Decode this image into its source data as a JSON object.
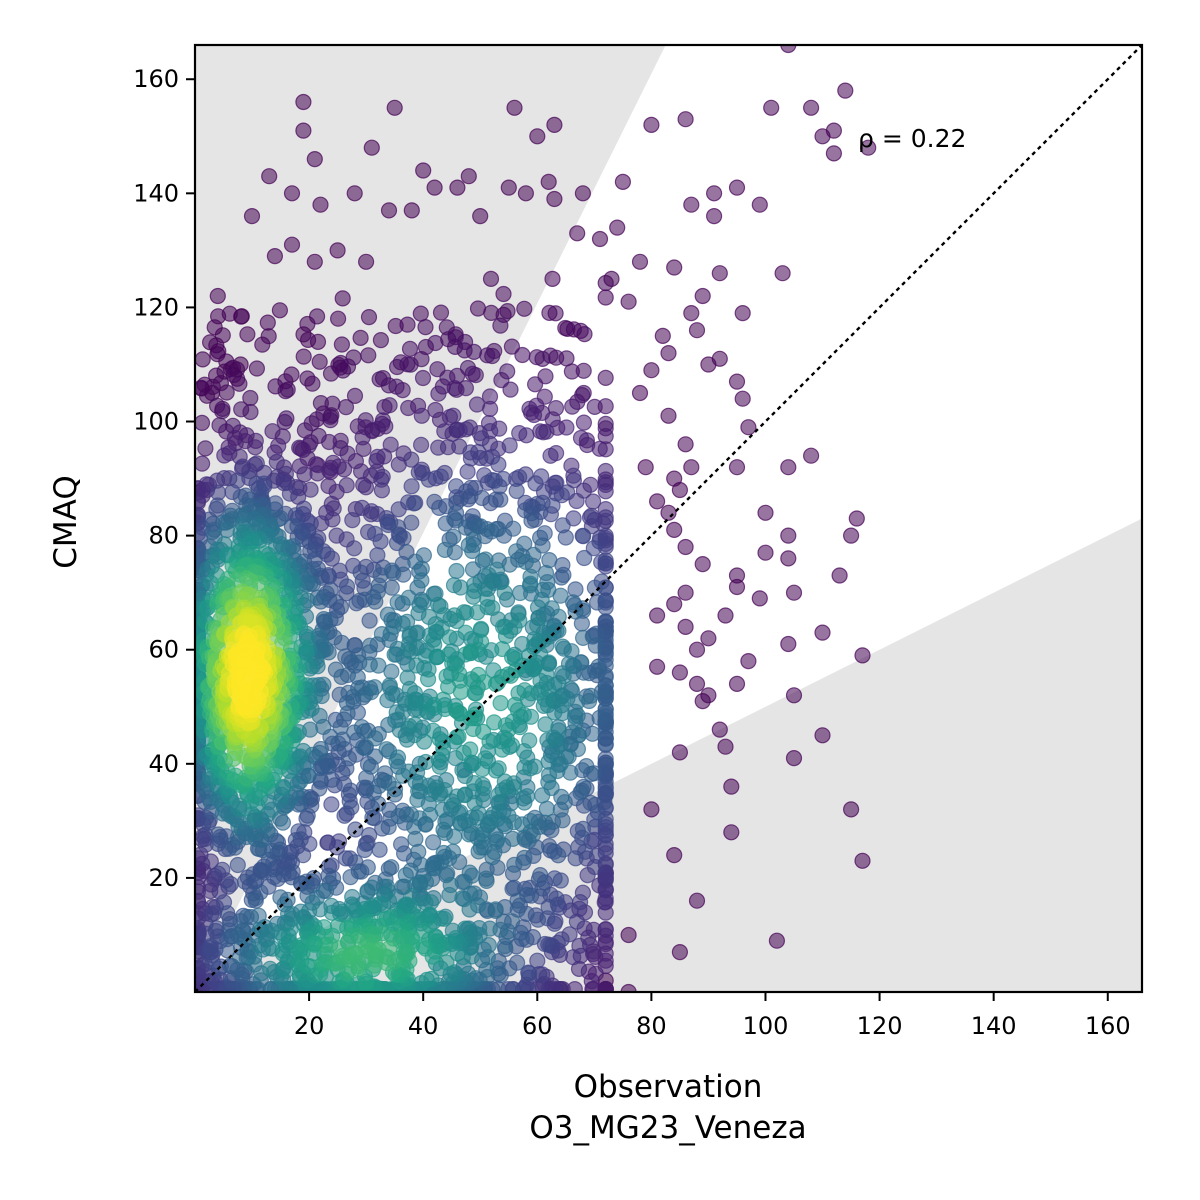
{
  "chart_data": {
    "type": "scatter",
    "xlabel": "Observation",
    "xlabel_sub": "O3_MG23_Veneza",
    "ylabel": "CMAQ",
    "annotation": "ρ = 0.22",
    "xlim": [
      0,
      166
    ],
    "ylim": [
      0,
      166
    ],
    "x_ticks": [
      20,
      40,
      60,
      80,
      100,
      120,
      140,
      160
    ],
    "y_ticks": [
      20,
      40,
      60,
      80,
      100,
      120,
      140,
      160
    ],
    "grid": false,
    "reference_line": {
      "type": "1:1",
      "style": "dotted",
      "color": "#000000"
    },
    "shaded_regions": [
      {
        "name": "upper-factor-region",
        "polygon": [
          [
            0,
            0
          ],
          [
            0,
            166
          ],
          [
            82.5,
            166
          ]
        ],
        "color": "#e5e5e5"
      },
      {
        "name": "lower-factor-region",
        "polygon": [
          [
            0,
            0
          ],
          [
            166,
            83
          ],
          [
            166,
            0
          ]
        ],
        "color": "#e5e5e5"
      }
    ],
    "colormap": "viridis",
    "color_meaning": "point density",
    "point_opacity": 0.55,
    "density_clusters": [
      {
        "center": [
          9,
          56
        ],
        "spread": [
          5,
          13
        ],
        "density": 1.0
      },
      {
        "center": [
          50,
          52
        ],
        "spread": [
          14,
          20
        ],
        "density": 0.55
      },
      {
        "center": [
          28,
          6
        ],
        "spread": [
          12,
          6
        ],
        "density": 0.6
      }
    ],
    "outlier_points": [
      [
        112,
        147
      ],
      [
        110,
        150
      ],
      [
        114,
        158
      ],
      [
        101,
        155
      ],
      [
        108,
        155
      ],
      [
        104,
        166
      ],
      [
        118,
        148
      ],
      [
        112,
        151
      ],
      [
        86,
        153
      ],
      [
        80,
        152
      ],
      [
        103,
        126
      ],
      [
        99,
        138
      ],
      [
        95,
        141
      ],
      [
        91,
        136
      ],
      [
        87,
        138
      ],
      [
        96,
        119
      ],
      [
        89,
        122
      ],
      [
        95,
        107
      ],
      [
        96,
        104
      ],
      [
        97,
        99
      ],
      [
        95,
        92
      ],
      [
        104,
        92
      ],
      [
        108,
        94
      ],
      [
        100,
        84
      ],
      [
        104,
        80
      ],
      [
        100,
        77
      ],
      [
        104,
        76
      ],
      [
        115,
        80
      ],
      [
        116,
        83
      ],
      [
        113,
        73
      ],
      [
        110,
        63
      ],
      [
        117,
        59
      ],
      [
        95,
        73
      ],
      [
        95,
        71
      ],
      [
        99,
        69
      ],
      [
        105,
        70
      ],
      [
        104,
        61
      ],
      [
        97,
        58
      ],
      [
        93,
        66
      ],
      [
        95,
        54
      ],
      [
        105,
        52
      ],
      [
        90,
        52
      ],
      [
        89,
        51
      ],
      [
        88,
        54
      ],
      [
        92,
        46
      ],
      [
        93,
        43
      ],
      [
        85,
        42
      ],
      [
        105,
        41
      ],
      [
        110,
        45
      ],
      [
        115,
        32
      ],
      [
        117,
        23
      ],
      [
        94,
        36
      ],
      [
        94,
        28
      ],
      [
        84,
        24
      ],
      [
        88,
        16
      ],
      [
        80,
        32
      ],
      [
        102,
        9
      ],
      [
        85,
        7
      ],
      [
        76,
        10
      ],
      [
        76,
        0
      ],
      [
        72,
        2
      ],
      [
        91,
        140
      ],
      [
        92,
        126
      ],
      [
        84,
        127
      ],
      [
        90,
        110
      ],
      [
        88,
        116
      ],
      [
        87,
        119
      ],
      [
        82,
        115
      ],
      [
        83,
        112
      ],
      [
        92,
        111
      ],
      [
        78,
        128
      ],
      [
        75,
        142
      ],
      [
        84,
        90
      ],
      [
        85,
        88
      ],
      [
        81,
        86
      ],
      [
        84,
        81
      ],
      [
        86,
        78
      ],
      [
        89,
        75
      ],
      [
        86,
        70
      ],
      [
        84,
        68
      ],
      [
        81,
        66
      ],
      [
        86,
        64
      ],
      [
        88,
        60
      ],
      [
        85,
        56
      ],
      [
        81,
        57
      ],
      [
        90,
        62
      ],
      [
        83,
        84
      ],
      [
        87,
        92
      ],
      [
        79,
        92
      ],
      [
        74,
        134
      ],
      [
        76,
        121
      ],
      [
        80,
        109
      ],
      [
        78,
        105
      ],
      [
        83,
        101
      ],
      [
        86,
        96
      ],
      [
        73,
        125
      ],
      [
        56,
        155
      ],
      [
        63,
        152
      ],
      [
        60,
        150
      ],
      [
        35,
        155
      ],
      [
        19,
        156
      ],
      [
        19,
        151
      ],
      [
        13,
        143
      ],
      [
        10,
        136
      ],
      [
        21,
        146
      ],
      [
        31,
        148
      ],
      [
        40,
        144
      ],
      [
        42,
        141
      ],
      [
        46,
        141
      ],
      [
        38,
        137
      ],
      [
        34,
        137
      ],
      [
        28,
        140
      ],
      [
        22,
        138
      ],
      [
        17,
        140
      ],
      [
        55,
        141
      ],
      [
        58,
        140
      ],
      [
        62,
        142
      ],
      [
        68,
        140
      ],
      [
        63,
        139
      ],
      [
        71,
        132
      ],
      [
        67,
        133
      ],
      [
        48,
        143
      ],
      [
        50,
        136
      ],
      [
        30,
        128
      ],
      [
        14,
        129
      ],
      [
        4,
        122
      ],
      [
        17,
        131
      ],
      [
        21,
        128
      ],
      [
        25,
        130
      ],
      [
        8,
        110
      ],
      [
        3,
        105
      ]
    ]
  }
}
